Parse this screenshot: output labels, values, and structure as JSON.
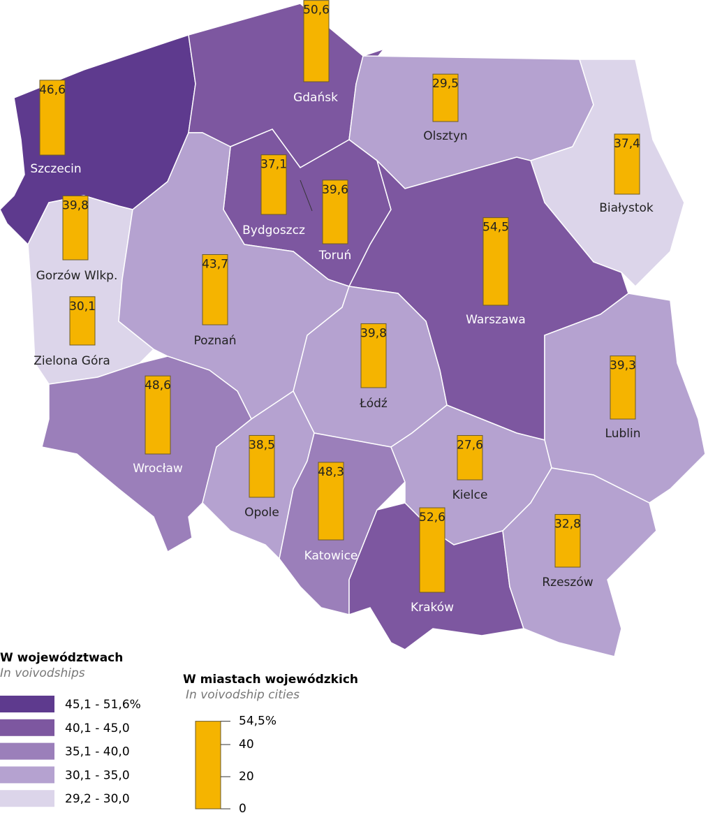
{
  "map": {
    "bar_color": "#f5b400",
    "region_colors": [
      "#5e3a8e",
      "#7d57a0",
      "#b5a2d0",
      "#dcd5ea",
      "#7d57a0",
      "#dcd5ea",
      "#b5a2d0",
      "#7d57a0",
      "#b5a2d0",
      "#b5a2d0",
      "#9b7fba",
      "#b5a2d0",
      "#9b7fba",
      "#b5a2d0",
      "#7d57a0",
      "#b5a2d0"
    ],
    "cities": [
      {
        "name": "Gdańsk",
        "value": 50.6,
        "value_label": "50,6"
      },
      {
        "name": "Szczecin",
        "value": 46.6,
        "value_label": "46,6"
      },
      {
        "name": "Olsztyn",
        "value": 29.5,
        "value_label": "29,5"
      },
      {
        "name": "Białystok",
        "value": 37.4,
        "value_label": "37,4"
      },
      {
        "name": "Bydgoszcz",
        "value": 37.1,
        "value_label": "37,1"
      },
      {
        "name": "Toruń",
        "value": 39.6,
        "value_label": "39,6"
      },
      {
        "name": "Gorzów Wlkp.",
        "value": 39.8,
        "value_label": "39,8"
      },
      {
        "name": "Warszawa",
        "value": 54.5,
        "value_label": "54,5"
      },
      {
        "name": "Poznań",
        "value": 43.7,
        "value_label": "43,7"
      },
      {
        "name": "Zielona Góra",
        "value": 30.1,
        "value_label": "30,1"
      },
      {
        "name": "Łódź",
        "value": 39.8,
        "value_label": "39,8"
      },
      {
        "name": "Lublin",
        "value": 39.3,
        "value_label": "39,3"
      },
      {
        "name": "Wrocław",
        "value": 48.6,
        "value_label": "48,6"
      },
      {
        "name": "Opole",
        "value": 38.5,
        "value_label": "38,5"
      },
      {
        "name": "Kielce",
        "value": 27.6,
        "value_label": "27,6"
      },
      {
        "name": "Katowice",
        "value": 48.3,
        "value_label": "48,3"
      },
      {
        "name": "Kraków",
        "value": 52.6,
        "value_label": "52,6"
      },
      {
        "name": "Rzeszów",
        "value": 32.8,
        "value_label": "32,8"
      }
    ]
  },
  "legend_regions": {
    "title": "W województwach",
    "subtitle": "In voivodships",
    "classes": [
      {
        "label": "45,1 -  51,6%",
        "color": "#5e3a8e"
      },
      {
        "label": "40,1 -  45,0",
        "color": "#7d57a0"
      },
      {
        "label": "35,1 -  40,0",
        "color": "#9b7fba"
      },
      {
        "label": "30,1 -  35,0",
        "color": "#b5a2d0"
      },
      {
        "label": "29,2 -  30,0",
        "color": "#dcd5ea"
      }
    ]
  },
  "legend_bars": {
    "title": "W miastach wojewódzkich",
    "subtitle": "In voivodship cities",
    "ticks": [
      {
        "value": 54.5,
        "label": "54,5%"
      },
      40,
      20,
      0
    ]
  }
}
